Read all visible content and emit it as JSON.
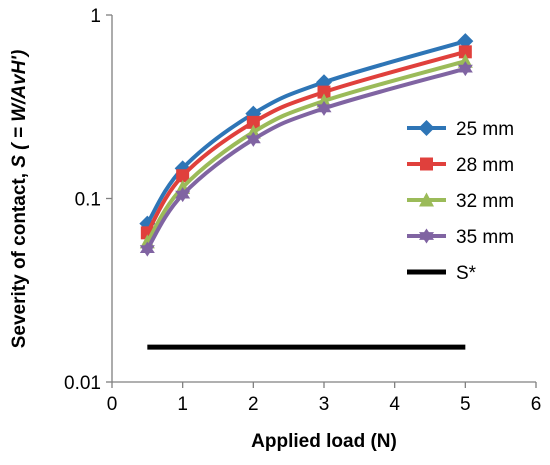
{
  "chart_data": {
    "type": "line",
    "title": "",
    "xlabel": "Applied load (N)",
    "ylabel_main": "Severity of contact, ",
    "ylabel_var": "S",
    "ylabel_eq": " ( = W/AvH')",
    "xlim": [
      0,
      6
    ],
    "ylim": [
      0.01,
      1
    ],
    "yscale": "log",
    "x_ticks": [
      "0",
      "1",
      "2",
      "3",
      "4",
      "5",
      "6"
    ],
    "y_ticks": [
      "0.01",
      "0.1",
      "1"
    ],
    "grid": false,
    "legend_position": "right",
    "x": [
      0.5,
      1,
      2,
      3,
      5
    ],
    "series": [
      {
        "name": "25 mm",
        "color": "#2e75b6",
        "marker": "diamond",
        "values": [
          0.073,
          0.146,
          0.29,
          0.43,
          0.72
        ]
      },
      {
        "name": "28 mm",
        "color": "#e0403c",
        "marker": "square",
        "values": [
          0.065,
          0.133,
          0.26,
          0.38,
          0.63
        ]
      },
      {
        "name": "32 mm",
        "color": "#9bbb59",
        "marker": "triangle",
        "values": [
          0.058,
          0.115,
          0.23,
          0.34,
          0.56
        ]
      },
      {
        "name": "35 mm",
        "color": "#8064a2",
        "marker": "star",
        "values": [
          0.053,
          0.105,
          0.21,
          0.31,
          0.51
        ]
      }
    ],
    "reference_line": {
      "name": "S*",
      "color": "#000000",
      "x": [
        0.5,
        5
      ],
      "y": 0.0155
    }
  }
}
